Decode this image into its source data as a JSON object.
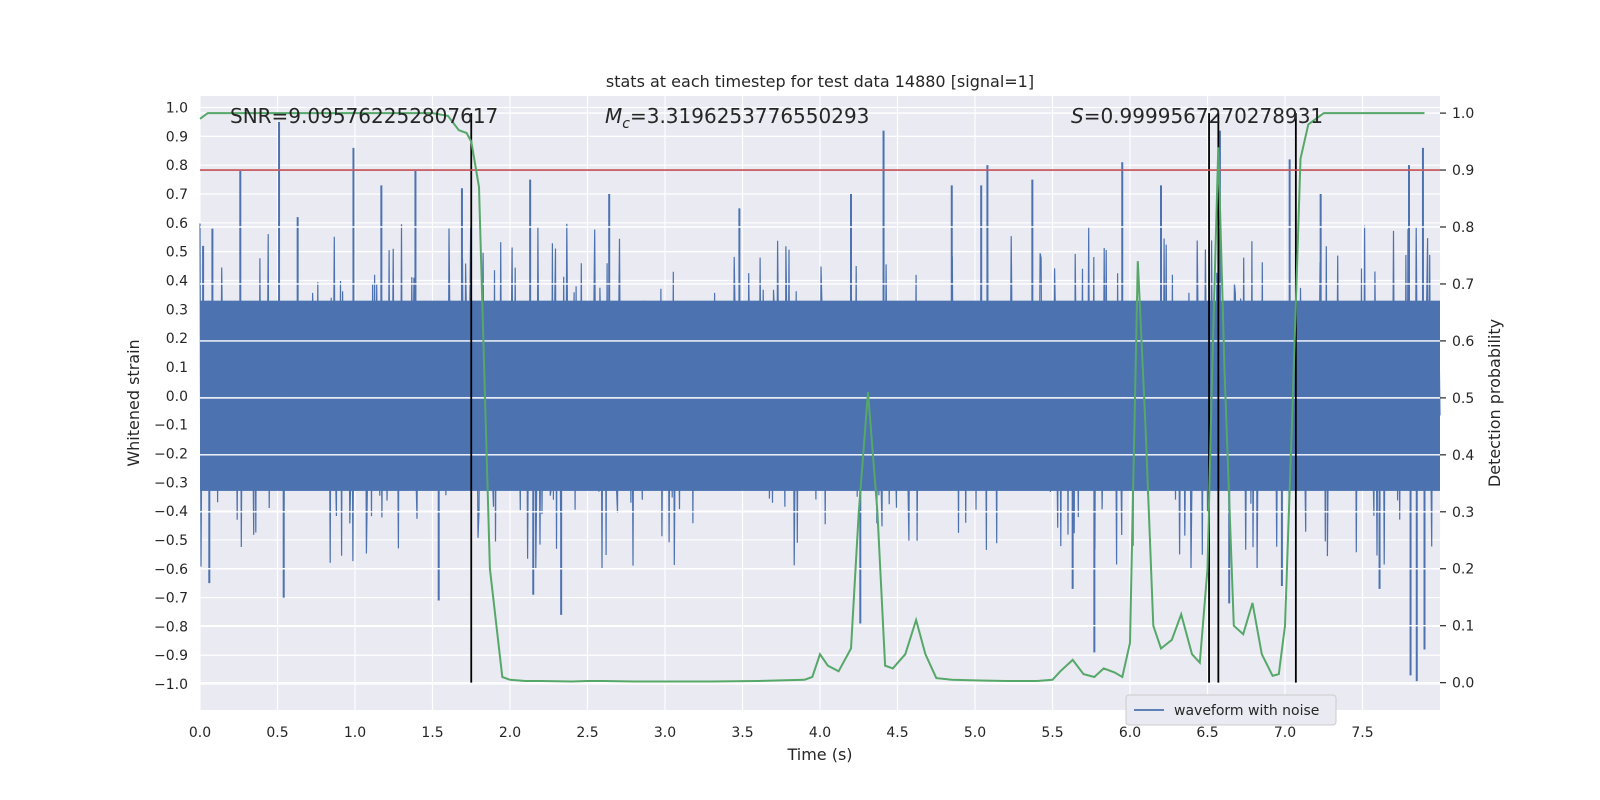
{
  "chart_data": {
    "type": "line",
    "title": "stats at each timestep for test data 14880 [signal=1]",
    "xlabel": "Time (s)",
    "ylabel": "Whitened strain",
    "y2label": "Detection probability",
    "xlim": [
      0.0,
      8.0
    ],
    "ylim": [
      -1.09,
      1.04
    ],
    "y2lim": [
      -0.048,
      1.03
    ],
    "xticks": [
      "0.0",
      "0.5",
      "1.0",
      "1.5",
      "2.0",
      "2.5",
      "3.0",
      "3.5",
      "4.0",
      "4.5",
      "5.0",
      "5.5",
      "6.0",
      "6.5",
      "7.0",
      "7.5"
    ],
    "yticks": [
      "−1.0",
      "−0.9",
      "−0.8",
      "−0.7",
      "−0.6",
      "−0.5",
      "−0.4",
      "−0.3",
      "−0.2",
      "−0.1",
      "0.0",
      "0.1",
      "0.2",
      "0.3",
      "0.4",
      "0.5",
      "0.6",
      "0.7",
      "0.8",
      "0.9",
      "1.0"
    ],
    "y2ticks": [
      "0.0",
      "0.1",
      "0.2",
      "0.3",
      "0.4",
      "0.5",
      "0.6",
      "0.7",
      "0.8",
      "0.9",
      "1.0"
    ],
    "annotations": {
      "snr": "SNR=9.095762252807617",
      "mc_symbol": "M",
      "mc_subscript": "c",
      "mc_value": "=3.3196253776550293",
      "s_symbol": "S",
      "s_value": "=0.9999567270278931"
    },
    "legend": {
      "label": "waveform with noise",
      "position": "lower-right"
    },
    "threshold": {
      "name": "threshold",
      "value": 0.9,
      "axis": "y2",
      "color": "#c44e52"
    },
    "vertical_lines": [
      1.75,
      6.51,
      6.57,
      7.07
    ],
    "strain_series": {
      "name": "waveform with noise",
      "color": "#4c72b0",
      "duration": 8.0,
      "core_amplitude": 0.32,
      "spikes": [
        {
          "t": 0.02,
          "v": 0.52
        },
        {
          "t": 0.08,
          "v": 0.58
        },
        {
          "t": 0.26,
          "v": 0.78
        },
        {
          "t": 0.51,
          "v": 0.95
        },
        {
          "t": 0.63,
          "v": 0.62
        },
        {
          "t": 0.99,
          "v": 0.86
        },
        {
          "t": 1.17,
          "v": 0.73
        },
        {
          "t": 1.39,
          "v": 0.78
        },
        {
          "t": 1.69,
          "v": 0.72
        },
        {
          "t": 2.13,
          "v": 0.75
        },
        {
          "t": 2.64,
          "v": 0.7
        },
        {
          "t": 3.48,
          "v": 0.65
        },
        {
          "t": 4.2,
          "v": 0.7
        },
        {
          "t": 4.41,
          "v": 0.92
        },
        {
          "t": 4.85,
          "v": 0.73
        },
        {
          "t": 5.04,
          "v": 0.73
        },
        {
          "t": 5.08,
          "v": 0.8
        },
        {
          "t": 5.37,
          "v": 0.75
        },
        {
          "t": 5.95,
          "v": 0.81
        },
        {
          "t": 6.2,
          "v": 0.73
        },
        {
          "t": 6.58,
          "v": 0.92
        },
        {
          "t": 7.03,
          "v": 0.82
        },
        {
          "t": 7.23,
          "v": 0.7
        },
        {
          "t": 7.8,
          "v": 0.8
        },
        {
          "t": 7.89,
          "v": 0.86
        },
        {
          "t": 0.06,
          "v": -0.65
        },
        {
          "t": 0.54,
          "v": -0.7
        },
        {
          "t": 1.54,
          "v": -0.71
        },
        {
          "t": 2.15,
          "v": -0.69
        },
        {
          "t": 2.33,
          "v": -0.76
        },
        {
          "t": 4.26,
          "v": -0.79
        },
        {
          "t": 5.63,
          "v": -0.67
        },
        {
          "t": 5.77,
          "v": -0.89
        },
        {
          "t": 6.64,
          "v": -0.72
        },
        {
          "t": 6.98,
          "v": -0.66
        },
        {
          "t": 7.61,
          "v": -0.67
        },
        {
          "t": 7.81,
          "v": -0.97
        },
        {
          "t": 7.85,
          "v": -0.99
        },
        {
          "t": 7.9,
          "v": -0.88
        }
      ]
    },
    "probability_series": {
      "name": "Detection probability",
      "color": "#55a868",
      "x": [
        0.0,
        0.05,
        0.1,
        0.2,
        0.3,
        0.5,
        0.7,
        0.9,
        1.1,
        1.3,
        1.5,
        1.6,
        1.67,
        1.72,
        1.75,
        1.8,
        1.87,
        1.95,
        2.0,
        2.1,
        2.2,
        2.4,
        2.5,
        2.6,
        2.8,
        3.0,
        3.3,
        3.6,
        3.9,
        3.95,
        4.0,
        4.05,
        4.12,
        4.2,
        4.25,
        4.31,
        4.37,
        4.42,
        4.47,
        4.55,
        4.62,
        4.68,
        4.75,
        4.85,
        5.0,
        5.2,
        5.4,
        5.5,
        5.55,
        5.63,
        5.7,
        5.77,
        5.83,
        5.9,
        5.95,
        6.0,
        6.05,
        6.1,
        6.15,
        6.2,
        6.27,
        6.33,
        6.4,
        6.45,
        6.5,
        6.53,
        6.57,
        6.61,
        6.67,
        6.73,
        6.79,
        6.85,
        6.92,
        6.96,
        7.0,
        7.05,
        7.1,
        7.15,
        7.2,
        7.25,
        7.3,
        7.5,
        7.7,
        7.9
      ],
      "y": [
        0.99,
        1.0,
        1.0,
        1.0,
        1.0,
        1.0,
        1.0,
        1.0,
        1.0,
        1.0,
        1.0,
        0.995,
        0.97,
        0.965,
        0.95,
        0.87,
        0.2,
        0.01,
        0.005,
        0.003,
        0.003,
        0.002,
        0.003,
        0.003,
        0.002,
        0.002,
        0.002,
        0.003,
        0.005,
        0.01,
        0.05,
        0.03,
        0.02,
        0.06,
        0.3,
        0.51,
        0.3,
        0.03,
        0.025,
        0.05,
        0.11,
        0.05,
        0.008,
        0.005,
        0.004,
        0.003,
        0.003,
        0.005,
        0.02,
        0.04,
        0.015,
        0.01,
        0.025,
        0.018,
        0.01,
        0.07,
        0.74,
        0.45,
        0.1,
        0.06,
        0.075,
        0.12,
        0.05,
        0.035,
        0.2,
        0.55,
        0.94,
        0.55,
        0.1,
        0.085,
        0.14,
        0.05,
        0.012,
        0.015,
        0.1,
        0.5,
        0.92,
        0.98,
        0.99,
        1.0,
        1.0,
        1.0,
        1.0,
        1.0
      ]
    }
  }
}
